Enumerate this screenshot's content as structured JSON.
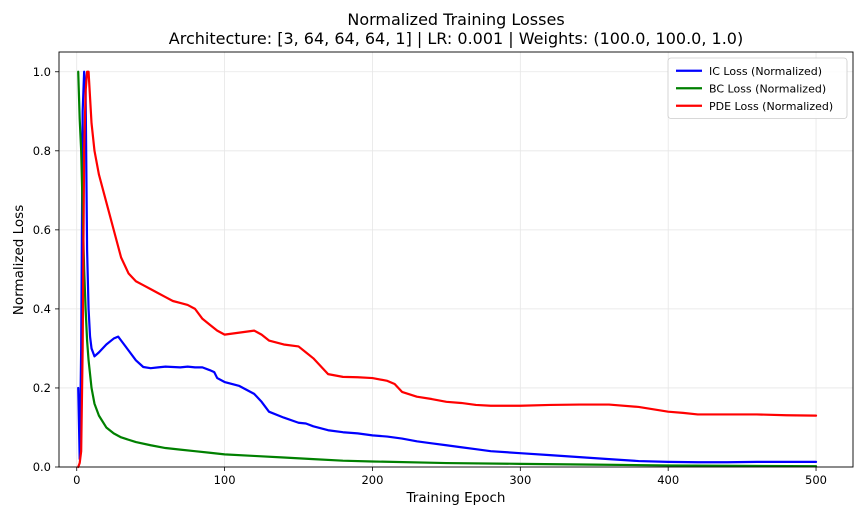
{
  "chart_data": {
    "type": "line",
    "title": "Normalized Training Losses",
    "subtitle": "Architecture: [3, 64, 64, 64, 1] | LR: 0.001 | Weights: (100.0, 100.0, 1.0)",
    "xlabel": "Training Epoch",
    "ylabel": "Normalized Loss",
    "xlim": [
      -12,
      525
    ],
    "ylim": [
      0,
      1.05
    ],
    "xticks": [
      0,
      100,
      200,
      300,
      400,
      500
    ],
    "yticks": [
      0.0,
      0.2,
      0.4,
      0.6,
      0.8,
      1.0
    ],
    "xtick_labels": [
      "0",
      "100",
      "200",
      "300",
      "400",
      "500"
    ],
    "ytick_labels": [
      "0.0",
      "0.2",
      "0.4",
      "0.6",
      "0.8",
      "1.0"
    ],
    "grid": true,
    "legend_position": "top-right",
    "series": [
      {
        "name": "IC Loss (Normalized)",
        "color": "#0000ff",
        "x": [
          1,
          2,
          3,
          4,
          5,
          6,
          7,
          8,
          9,
          10,
          12,
          15,
          20,
          25,
          28,
          30,
          35,
          40,
          45,
          50,
          55,
          60,
          65,
          70,
          75,
          80,
          85,
          90,
          93,
          95,
          100,
          110,
          120,
          125,
          130,
          140,
          150,
          155,
          160,
          170,
          180,
          190,
          200,
          210,
          220,
          230,
          240,
          250,
          260,
          270,
          280,
          300,
          320,
          340,
          360,
          380,
          400,
          420,
          440,
          460,
          480,
          500
        ],
        "y": [
          0.2,
          0.02,
          0.3,
          0.9,
          1.0,
          0.95,
          0.55,
          0.4,
          0.33,
          0.3,
          0.28,
          0.29,
          0.31,
          0.325,
          0.33,
          0.32,
          0.295,
          0.27,
          0.253,
          0.25,
          0.252,
          0.254,
          0.253,
          0.252,
          0.254,
          0.252,
          0.252,
          0.245,
          0.24,
          0.225,
          0.215,
          0.205,
          0.185,
          0.165,
          0.14,
          0.125,
          0.112,
          0.11,
          0.103,
          0.093,
          0.088,
          0.085,
          0.08,
          0.077,
          0.072,
          0.065,
          0.06,
          0.055,
          0.05,
          0.045,
          0.04,
          0.035,
          0.03,
          0.025,
          0.02,
          0.015,
          0.013,
          0.012,
          0.012,
          0.013,
          0.013,
          0.013
        ]
      },
      {
        "name": "BC Loss (Normalized)",
        "color": "#008000",
        "x": [
          1,
          2,
          3,
          4,
          5,
          6,
          7,
          8,
          10,
          12,
          15,
          20,
          25,
          30,
          40,
          50,
          60,
          70,
          80,
          90,
          100,
          120,
          140,
          160,
          180,
          200,
          250,
          300,
          350,
          400,
          450,
          500
        ],
        "y": [
          1.0,
          0.88,
          0.8,
          0.65,
          0.5,
          0.4,
          0.32,
          0.27,
          0.2,
          0.16,
          0.13,
          0.1,
          0.085,
          0.075,
          0.063,
          0.055,
          0.048,
          0.044,
          0.04,
          0.036,
          0.032,
          0.028,
          0.024,
          0.02,
          0.016,
          0.014,
          0.01,
          0.008,
          0.006,
          0.004,
          0.003,
          0.002
        ]
      },
      {
        "name": "PDE Loss (Normalized)",
        "color": "#ff0000",
        "x": [
          1,
          2,
          3,
          4,
          5,
          6,
          7,
          8,
          10,
          12,
          15,
          20,
          25,
          30,
          35,
          40,
          45,
          50,
          55,
          60,
          65,
          70,
          75,
          80,
          85,
          90,
          95,
          100,
          110,
          120,
          125,
          130,
          140,
          150,
          155,
          160,
          170,
          180,
          190,
          200,
          210,
          215,
          220,
          230,
          240,
          250,
          260,
          270,
          280,
          290,
          300,
          320,
          340,
          360,
          380,
          400,
          410,
          420,
          440,
          460,
          480,
          500
        ],
        "y": [
          0.0,
          0.01,
          0.04,
          0.3,
          0.8,
          0.95,
          1.0,
          1.0,
          0.87,
          0.8,
          0.74,
          0.67,
          0.6,
          0.53,
          0.49,
          0.47,
          0.46,
          0.45,
          0.44,
          0.43,
          0.42,
          0.415,
          0.41,
          0.4,
          0.375,
          0.36,
          0.345,
          0.335,
          0.34,
          0.345,
          0.335,
          0.32,
          0.31,
          0.305,
          0.29,
          0.275,
          0.235,
          0.228,
          0.227,
          0.225,
          0.218,
          0.21,
          0.19,
          0.178,
          0.172,
          0.165,
          0.162,
          0.157,
          0.155,
          0.155,
          0.155,
          0.157,
          0.158,
          0.158,
          0.152,
          0.14,
          0.137,
          0.133,
          0.133,
          0.133,
          0.131,
          0.13
        ]
      }
    ]
  }
}
